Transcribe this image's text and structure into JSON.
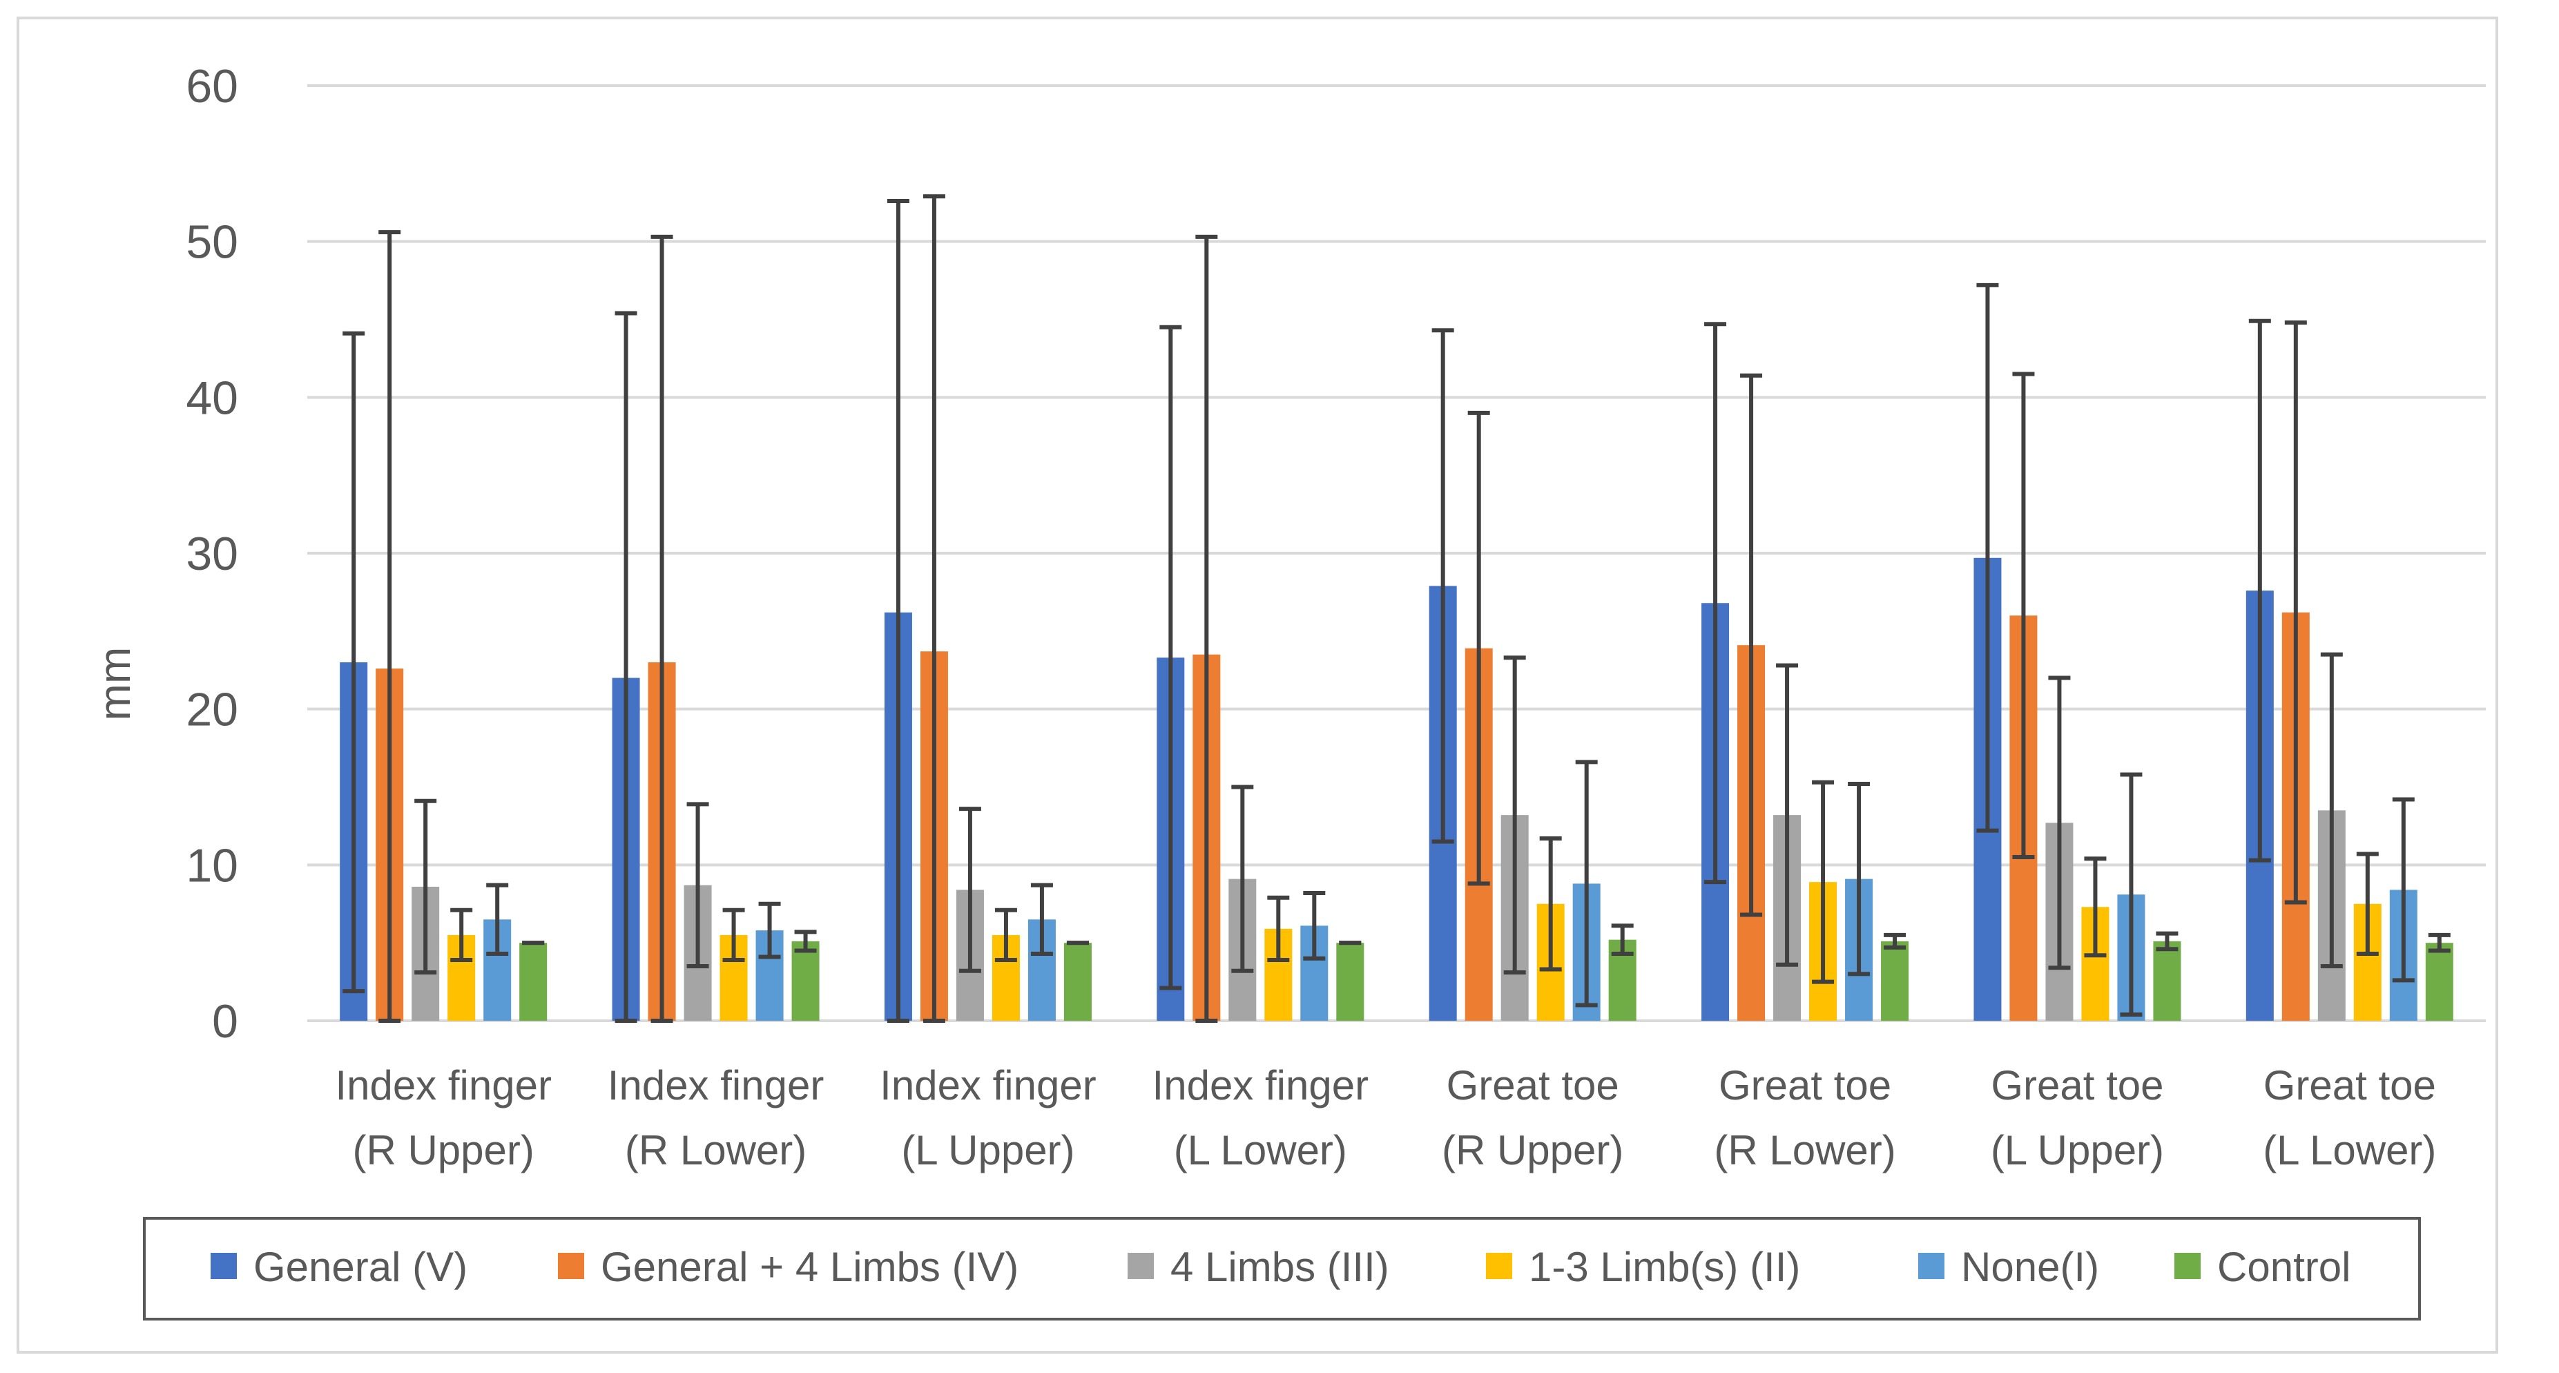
{
  "chart_data": {
    "type": "bar",
    "title": "",
    "xlabel": "",
    "ylabel": "mm",
    "ylim": [
      0,
      60
    ],
    "yticks": [
      0,
      10,
      20,
      30,
      40,
      50,
      60
    ],
    "grid": true,
    "legend_position": "bottom",
    "categories": [
      [
        "Index finger",
        "(R Upper)"
      ],
      [
        "Index finger",
        "(R Lower)"
      ],
      [
        "Index finger",
        "(L Upper)"
      ],
      [
        "Index finger",
        "(L Lower)"
      ],
      [
        "Great toe",
        "(R Upper)"
      ],
      [
        "Great toe",
        "(R Lower)"
      ],
      [
        "Great toe",
        "(L Upper)"
      ],
      [
        "Great toe",
        "(L Lower)"
      ]
    ],
    "series": [
      {
        "name": "General (V)",
        "color": "#4472c4",
        "values": [
          23,
          22,
          26.2,
          23.3,
          27.9,
          26.8,
          29.7,
          27.6
        ],
        "errors": [
          21.1,
          23.4,
          26.4,
          21.2,
          16.4,
          17.9,
          17.5,
          17.3
        ]
      },
      {
        "name": "General + 4 Limbs (IV)",
        "color": "#ed7d31",
        "values": [
          22.6,
          23,
          23.7,
          23.5,
          23.9,
          24.1,
          26,
          26.2
        ],
        "errors": [
          28,
          27.3,
          29.2,
          26.8,
          15.1,
          17.3,
          15.5,
          18.6
        ]
      },
      {
        "name": "4 Limbs (III)",
        "color": "#a5a5a5",
        "values": [
          8.6,
          8.7,
          8.4,
          9.1,
          13.2,
          13.2,
          12.7,
          13.5
        ],
        "errors": [
          5.5,
          5.2,
          5.2,
          5.9,
          10.1,
          9.6,
          9.3,
          10
        ]
      },
      {
        "name": "1-3 Limb(s) (II)",
        "color": "#ffc000",
        "values": [
          5.5,
          5.5,
          5.5,
          5.9,
          7.5,
          8.9,
          7.3,
          7.5
        ],
        "errors": [
          1.6,
          1.6,
          1.6,
          2,
          4.2,
          6.4,
          3.1,
          3.2
        ]
      },
      {
        "name": "None(I)",
        "color": "#5b9bd5",
        "values": [
          6.5,
          5.8,
          6.5,
          6.1,
          8.8,
          9.1,
          8.1,
          8.4
        ],
        "errors": [
          2.2,
          1.7,
          2.2,
          2.1,
          7.8,
          6.1,
          7.7,
          5.8
        ]
      },
      {
        "name": "Control",
        "color": "#70ad47",
        "values": [
          5,
          5.1,
          5,
          5,
          5.2,
          5.1,
          5.1,
          5
        ],
        "errors": [
          0,
          0.6,
          0,
          0,
          0.9,
          0.4,
          0.5,
          0.5
        ]
      }
    ],
    "error_bar_color": "#404040"
  }
}
